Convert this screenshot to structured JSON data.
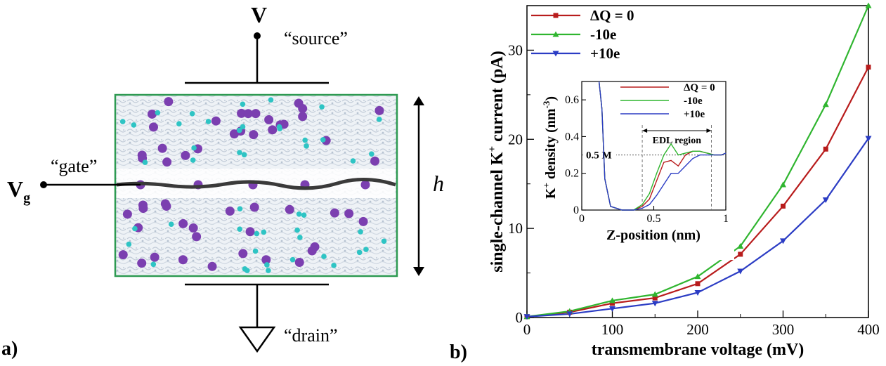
{
  "panel_a": {
    "panel_label": "a)",
    "source_symbol": "V",
    "source_label": "“source”",
    "gate_symbol": "V",
    "gate_subscript": "g",
    "gate_label": "“gate”",
    "drain_label": "“drain”",
    "height_label": "h",
    "colors": {
      "box_border": "#2e9a52",
      "membrane": "#3a3a3a",
      "potassium_ion": "#7b3fb0",
      "chloride_ion": "#2ec4c4",
      "water": "#c9d3de"
    }
  },
  "panel_b": {
    "panel_label": "b)"
  },
  "chart_data": [
    {
      "type": "line",
      "xlabel": "transmembrane voltage (mV)",
      "ylabel_prefix": "single-channel K",
      "ylabel_sup": "+",
      "ylabel_suffix": " current (pA)",
      "x": [
        0,
        50,
        100,
        150,
        200,
        250,
        300,
        350,
        400
      ],
      "xlim": [
        0,
        400
      ],
      "ylim": [
        0,
        35
      ],
      "xticks": [
        "0",
        "100",
        "200",
        "300",
        "400"
      ],
      "yticks": [
        "0",
        "10",
        "20",
        "30"
      ],
      "grid": false,
      "legend_position": "top-left",
      "series": [
        {
          "name": "ΔQ = 0",
          "color": "#b81c1c",
          "marker": "square",
          "values": [
            0.1,
            0.6,
            1.6,
            2.2,
            3.8,
            7.1,
            12.5,
            18.9,
            28.1
          ]
        },
        {
          "name": "-10e",
          "color": "#2fb52f",
          "marker": "triangle-up",
          "values": [
            0.1,
            0.7,
            1.9,
            2.6,
            4.6,
            8.0,
            14.9,
            23.9,
            35.0
          ]
        },
        {
          "name": "+10e",
          "color": "#2b3cc4",
          "marker": "triangle-down",
          "values": [
            0.1,
            0.4,
            1.0,
            1.6,
            2.8,
            5.2,
            8.6,
            13.2,
            20.1
          ]
        }
      ]
    },
    {
      "type": "line",
      "xlabel": "Z-position (nm)",
      "ylabel_prefix": "K",
      "ylabel_sup": "+",
      "ylabel_suffix": " density (nm",
      "ylabel_sup2": "-3",
      "ylabel_end": ")",
      "xlim": [
        0,
        1
      ],
      "ylim": [
        0,
        0.7
      ],
      "xticks": [
        "0",
        "0.5",
        "1"
      ],
      "yticks": [
        "0",
        "0.2",
        "0.4",
        "0.6"
      ],
      "annotation_ref_label": "0.5 M",
      "annotation_ref_value": 0.3,
      "annotation_region_label": "EDL region",
      "annotation_region": [
        0.42,
        0.9
      ],
      "legend_position": "top-right",
      "series": [
        {
          "name": "ΔQ = 0",
          "color": "#b81c1c",
          "x": [
            0.12,
            0.14,
            0.16,
            0.2,
            0.28,
            0.36,
            0.42,
            0.47,
            0.52,
            0.57,
            0.62,
            0.67,
            0.72,
            0.77,
            0.82,
            0.87,
            0.92,
            0.97,
            1.0
          ],
          "y": [
            0.72,
            0.55,
            0.17,
            0.02,
            0.0,
            0.0,
            0.02,
            0.06,
            0.16,
            0.26,
            0.27,
            0.24,
            0.3,
            0.32,
            0.32,
            0.31,
            0.3,
            0.3,
            0.31
          ]
        },
        {
          "name": "-10e",
          "color": "#2fb52f",
          "x": [
            0.12,
            0.14,
            0.16,
            0.2,
            0.28,
            0.36,
            0.42,
            0.47,
            0.52,
            0.57,
            0.62,
            0.67,
            0.72,
            0.77,
            0.82,
            0.87,
            0.92,
            0.97,
            1.0
          ],
          "y": [
            0.72,
            0.55,
            0.17,
            0.02,
            0.0,
            0.0,
            0.03,
            0.09,
            0.2,
            0.3,
            0.36,
            0.3,
            0.31,
            0.32,
            0.32,
            0.31,
            0.3,
            0.3,
            0.31
          ]
        },
        {
          "name": "+10e",
          "color": "#2b3cc4",
          "x": [
            0.12,
            0.14,
            0.16,
            0.2,
            0.28,
            0.36,
            0.42,
            0.47,
            0.52,
            0.57,
            0.62,
            0.67,
            0.72,
            0.77,
            0.82,
            0.87,
            0.92,
            0.97,
            1.0
          ],
          "y": [
            0.72,
            0.55,
            0.17,
            0.02,
            0.0,
            0.0,
            0.01,
            0.03,
            0.08,
            0.14,
            0.2,
            0.2,
            0.24,
            0.28,
            0.3,
            0.3,
            0.3,
            0.3,
            0.31
          ]
        }
      ]
    }
  ]
}
